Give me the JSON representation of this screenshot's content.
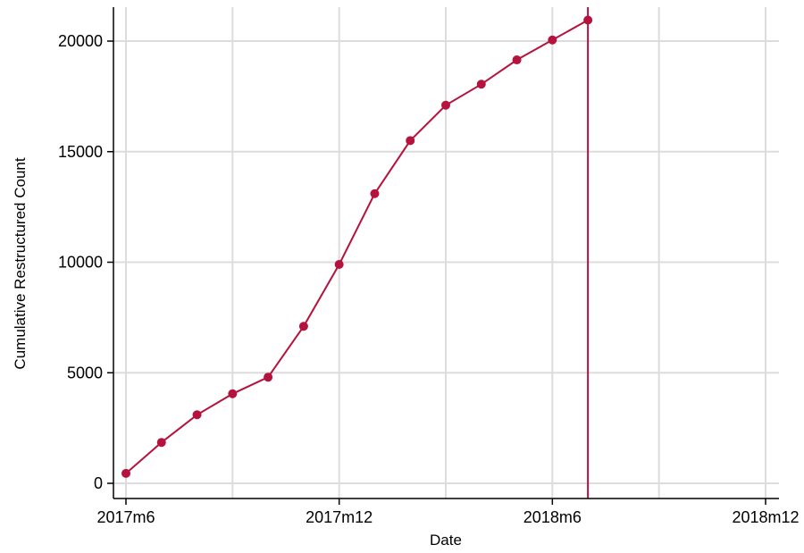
{
  "chart_data": {
    "type": "line",
    "title": "",
    "xlabel": "Date",
    "ylabel": "Cumulative Restructured Count",
    "x": [
      "2017m6",
      "2017m7",
      "2017m8",
      "2017m9",
      "2017m10",
      "2017m11",
      "2017m12",
      "2018m1",
      "2018m2",
      "2018m3",
      "2018m4",
      "2018m5",
      "2018m6",
      "2018m7"
    ],
    "series": [
      {
        "values": [
          450,
          1850,
          3100,
          4050,
          4800,
          7100,
          9900,
          13100,
          15500,
          17100,
          18050,
          19150,
          20050,
          20950
        ]
      }
    ],
    "xticks": [
      "2017m6",
      "2017m12",
      "2018m6",
      "2018m12"
    ],
    "xtick_months": [
      0,
      6,
      12,
      18
    ],
    "xgrid_months": [
      0,
      3,
      6,
      9,
      12,
      15,
      18
    ],
    "xlim_months": [
      0,
      18
    ],
    "yticks": [
      0,
      5000,
      10000,
      15000,
      20000
    ],
    "ylim": [
      0,
      20000
    ],
    "reference_line_month": 13,
    "grid": true,
    "colors": {
      "series": "#b5133d",
      "grid": "#dcdcdc",
      "axis": "#000000"
    }
  }
}
